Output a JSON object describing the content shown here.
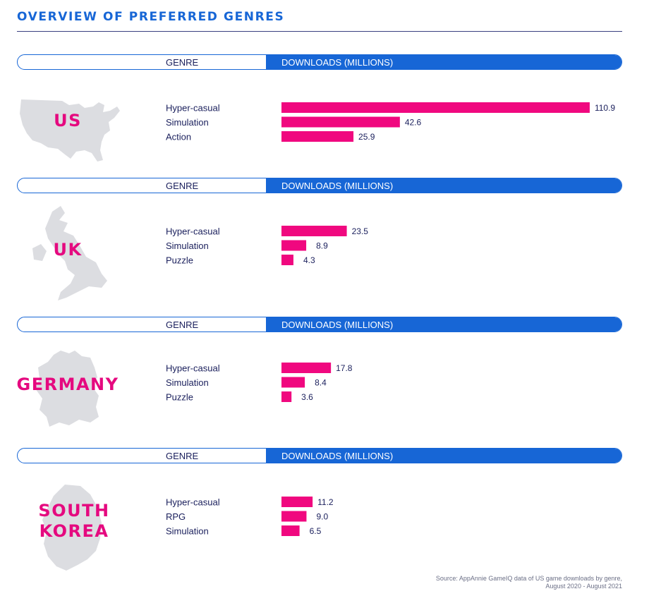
{
  "title": "OVERVIEW OF PREFERRED GENRES",
  "header": {
    "genre": "GENRE",
    "downloads": "DOWNLOADS (MILLIONS)"
  },
  "colors": {
    "accent_blue": "#1766d6",
    "bar_pink": "#f0087f",
    "map_gray": "#dcdde1"
  },
  "source": {
    "line1": "Source: AppAnnie GameIQ data of US game downloads by genre,",
    "line2": "August 2020 - August 2021"
  },
  "chart_data": [
    {
      "type": "bar",
      "country": "US",
      "map_icon": "us-map-icon",
      "categories": [
        "Hyper-casual",
        "Simulation",
        "Action"
      ],
      "values": [
        110.9,
        42.6,
        25.9
      ],
      "value_labels": [
        "110.9",
        "42.6",
        "25.9"
      ]
    },
    {
      "type": "bar",
      "country": "UK",
      "map_icon": "uk-map-icon",
      "categories": [
        "Hyper-casual",
        "Simulation",
        "Puzzle"
      ],
      "values": [
        23.5,
        8.9,
        4.3
      ],
      "value_labels": [
        "23.5",
        "8.9",
        "4.3"
      ]
    },
    {
      "type": "bar",
      "country": "GERMANY",
      "map_icon": "germany-map-icon",
      "categories": [
        "Hyper-casual",
        "Simulation",
        "Puzzle"
      ],
      "values": [
        17.8,
        8.4,
        3.6
      ],
      "value_labels": [
        "17.8",
        "8.4",
        "3.6"
      ]
    },
    {
      "type": "bar",
      "country": "SOUTH KOREA",
      "map_icon": "south-korea-map-icon",
      "categories": [
        "Hyper-casual",
        "RPG",
        "Simulation"
      ],
      "values": [
        11.2,
        9.0,
        6.5
      ],
      "value_labels": [
        "11.2",
        "9.0",
        "6.5"
      ]
    }
  ]
}
